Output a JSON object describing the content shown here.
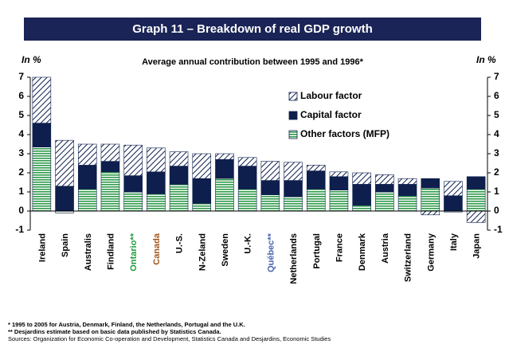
{
  "chart_data": {
    "type": "stacked_bar",
    "title": "Graph 11 – Breakdown of real GDP growth",
    "subtitle": "Average annual contribution between 1995 and 1996*",
    "y_label": "In %",
    "y2_label": "In %",
    "categories": [
      "Ireland",
      "Spain",
      "Australis",
      "Findland",
      "Ontario**",
      "Canada",
      "U.-S.",
      "N-Zeland",
      "Sweden",
      "U.-K.",
      "Québec**",
      "Netherlands",
      "Portugal",
      "France",
      "Denmark",
      "Austria",
      "Switzerland",
      "Germany",
      "Italy",
      "Japan"
    ],
    "category_colors": [
      "#000000",
      "#000000",
      "#000000",
      "#000000",
      "#1e9a3c",
      "#a0561a",
      "#000000",
      "#000000",
      "#000000",
      "#000000",
      "#4a64b0",
      "#000000",
      "#000000",
      "#000000",
      "#000000",
      "#000000",
      "#000000",
      "#000000",
      "#000000",
      "#000000"
    ],
    "series": [
      {
        "name": "Other factors (MFP)",
        "color": "#2e9a4a",
        "pattern": "stripes",
        "values": [
          3.35,
          -0.1,
          1.15,
          2.05,
          1.0,
          0.9,
          1.4,
          0.4,
          1.7,
          1.15,
          0.85,
          0.75,
          1.15,
          1.1,
          0.3,
          1.0,
          0.8,
          1.2,
          -0.05,
          1.15
        ]
      },
      {
        "name": "Capital factor",
        "color": "#0e1f4d",
        "pattern": "solid",
        "values": [
          1.25,
          1.3,
          1.25,
          0.55,
          0.85,
          1.15,
          0.95,
          1.3,
          1.0,
          1.2,
          0.75,
          0.85,
          0.95,
          0.7,
          1.1,
          0.4,
          0.6,
          0.5,
          0.8,
          0.65
        ]
      },
      {
        "name": "Labour factor",
        "color": "#0e1f4d",
        "pattern": "hatch",
        "values": [
          2.4,
          2.4,
          1.1,
          0.9,
          1.6,
          1.25,
          0.75,
          1.3,
          0.3,
          0.45,
          1.0,
          0.95,
          0.3,
          0.25,
          0.6,
          0.5,
          0.3,
          -0.2,
          0.75,
          -0.6
        ]
      }
    ],
    "ylim": [
      -1,
      7
    ],
    "yticks": [
      -1,
      0,
      1,
      2,
      3,
      4,
      5,
      6,
      7
    ],
    "y2lim": [
      -1,
      7
    ],
    "y2ticks": [
      -1,
      0,
      1,
      2,
      3,
      4,
      5,
      6,
      7
    ],
    "legend_order": "reverse",
    "footnotes": [
      "* 1995 to 2005 for Austria, Denmark, Finland, the Netherlands, Portugal and the U.K.",
      "** Desjardins estimate based on basic data published by Statistics Canada.",
      "Sources: Organization for Economic Co-operation and Development, Statistics Canada and Desjardins, Economic Studies"
    ]
  }
}
